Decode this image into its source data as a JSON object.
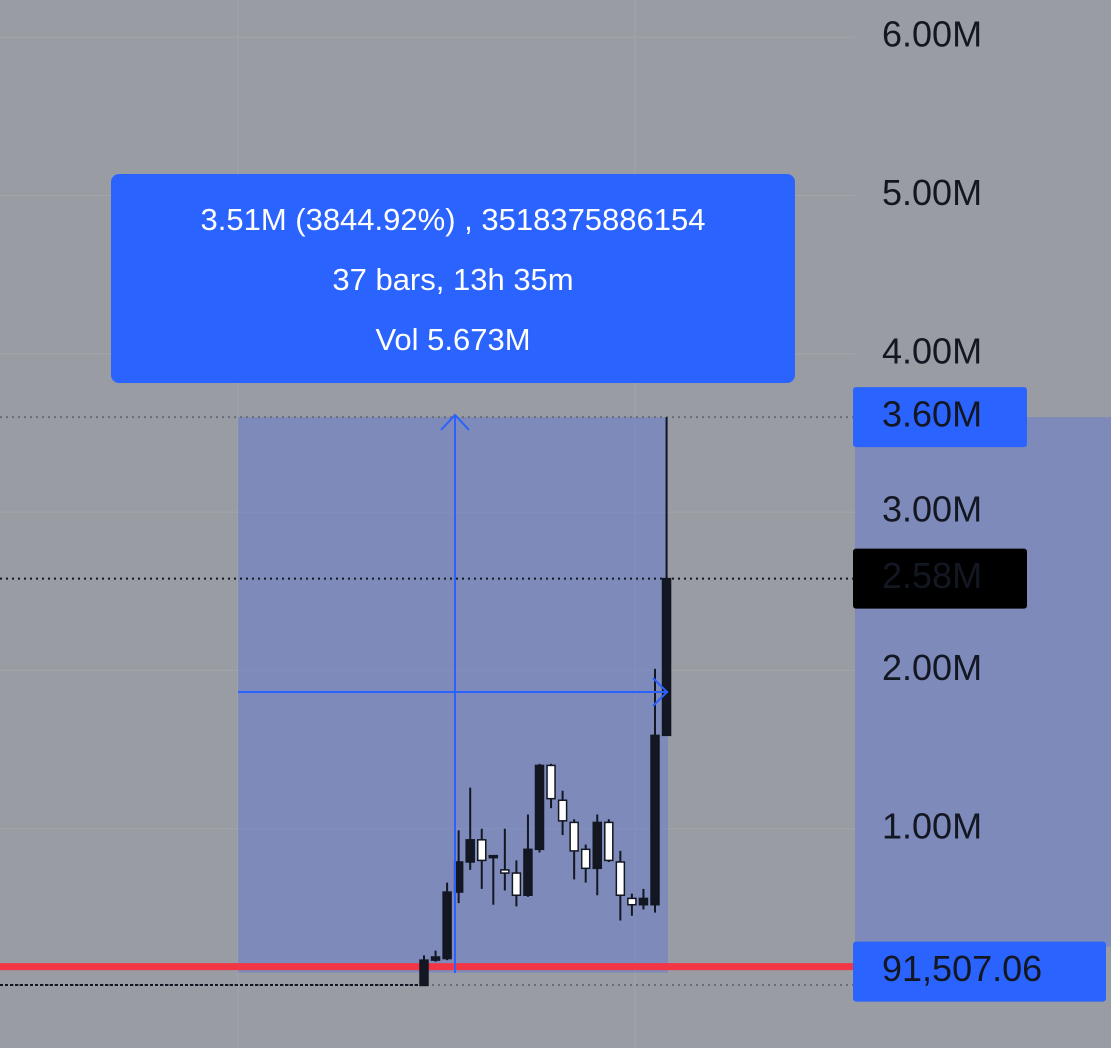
{
  "chart_data": {
    "type": "candlestick",
    "ylim": [
      -385000,
      6235000
    ],
    "yticks": [
      {
        "value": 1000000,
        "label": "1.00M"
      },
      {
        "value": 2000000,
        "label": "2.00M"
      },
      {
        "value": 3000000,
        "label": "3.00M"
      },
      {
        "value": 4000000,
        "label": "4.00M"
      },
      {
        "value": 5000000,
        "label": "5.00M"
      },
      {
        "value": 6000000,
        "label": "6.00M"
      }
    ],
    "grid": true,
    "up_color": "#131722",
    "down_color": "#ffffff",
    "open": [
      10000,
      170000,
      180000,
      600000,
      790000,
      930000,
      820000,
      740000,
      720000,
      580000,
      870000,
      1400000,
      1180000,
      1040000,
      870000,
      750000,
      1040000,
      790000,
      560000,
      520000,
      520000,
      1590000
    ],
    "high": [
      200000,
      230000,
      660000,
      990000,
      1260000,
      1000000,
      830000,
      1000000,
      800000,
      1090000,
      1410000,
      1410000,
      1240000,
      1060000,
      900000,
      1090000,
      1060000,
      860000,
      590000,
      620000,
      2010000,
      3600000
    ],
    "low": [
      10000,
      160000,
      170000,
      530000,
      740000,
      620000,
      520000,
      610000,
      510000,
      570000,
      850000,
      1130000,
      960000,
      680000,
      660000,
      580000,
      790000,
      420000,
      450000,
      490000,
      470000,
      1590000
    ],
    "close": [
      170000,
      190000,
      600000,
      790000,
      930000,
      800000,
      830000,
      720000,
      580000,
      870000,
      1400000,
      1190000,
      1050000,
      860000,
      750000,
      1040000,
      800000,
      580000,
      520000,
      560000,
      1590000,
      2580000
    ],
    "last_price": {
      "value": 2580000,
      "label": "2.58M"
    },
    "measure": {
      "high": {
        "value": 3600000,
        "label": "3.60M"
      },
      "low": {
        "value": 91507.06,
        "label": "91,507.06"
      },
      "lines": [
        "3.51M (3844.92%) , 3518375886154",
        "37 bars, 13h 35m",
        "Vol 5.673M"
      ]
    }
  }
}
